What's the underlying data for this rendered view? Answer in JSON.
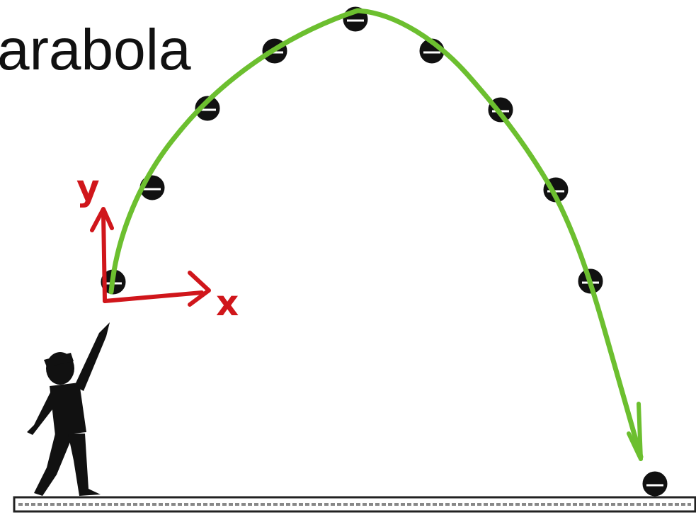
{
  "title": "arabola",
  "axes": {
    "y_label": "y",
    "x_label": "x"
  }
}
